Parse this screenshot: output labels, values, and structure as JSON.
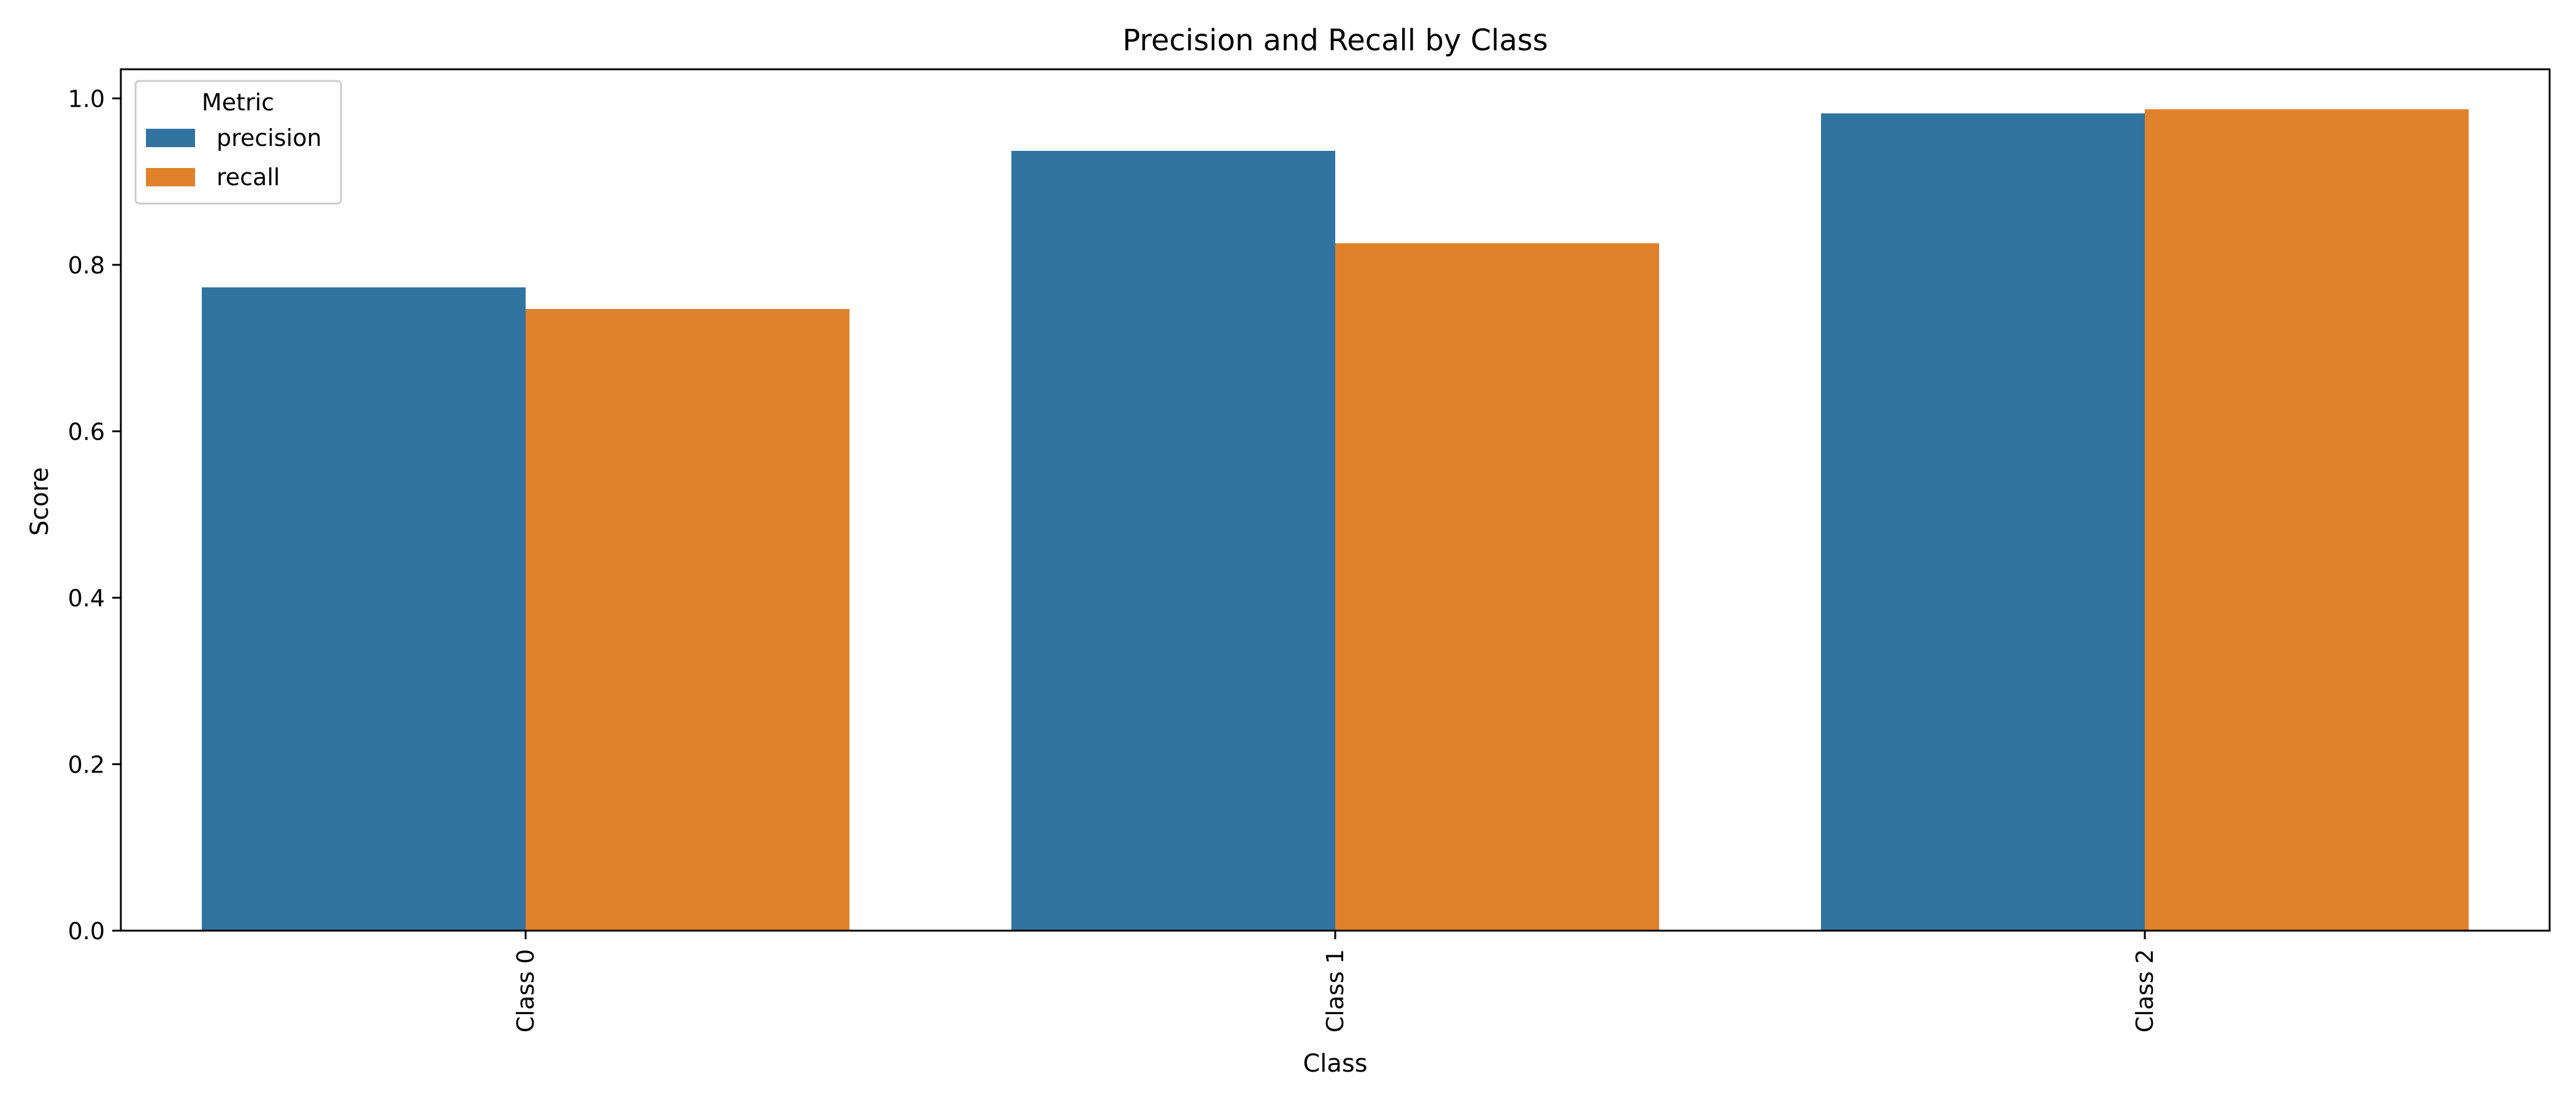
{
  "chart_data": {
    "type": "bar",
    "title": "Precision and Recall by Class",
    "xlabel": "Class",
    "ylabel": "Score",
    "categories": [
      "Class 0",
      "Class 1",
      "Class 2"
    ],
    "series": [
      {
        "name": "precision",
        "values": [
          0.773,
          0.937,
          0.982
        ]
      },
      {
        "name": "recall",
        "values": [
          0.747,
          0.826,
          0.987
        ]
      }
    ],
    "ylim": [
      0,
      1.035
    ],
    "yticks": [
      0.0,
      0.2,
      0.4,
      0.6,
      0.8,
      1.0
    ],
    "ytick_labels": [
      "0.0",
      "0.2",
      "0.4",
      "0.6",
      "0.8",
      "1.0"
    ],
    "grid": false,
    "legend": {
      "title": "Metric",
      "placement": "top-left"
    },
    "colors": {
      "precision": "#3274a1",
      "recall": "#e1812c",
      "axes": "#000000",
      "background": "#ffffff"
    }
  }
}
